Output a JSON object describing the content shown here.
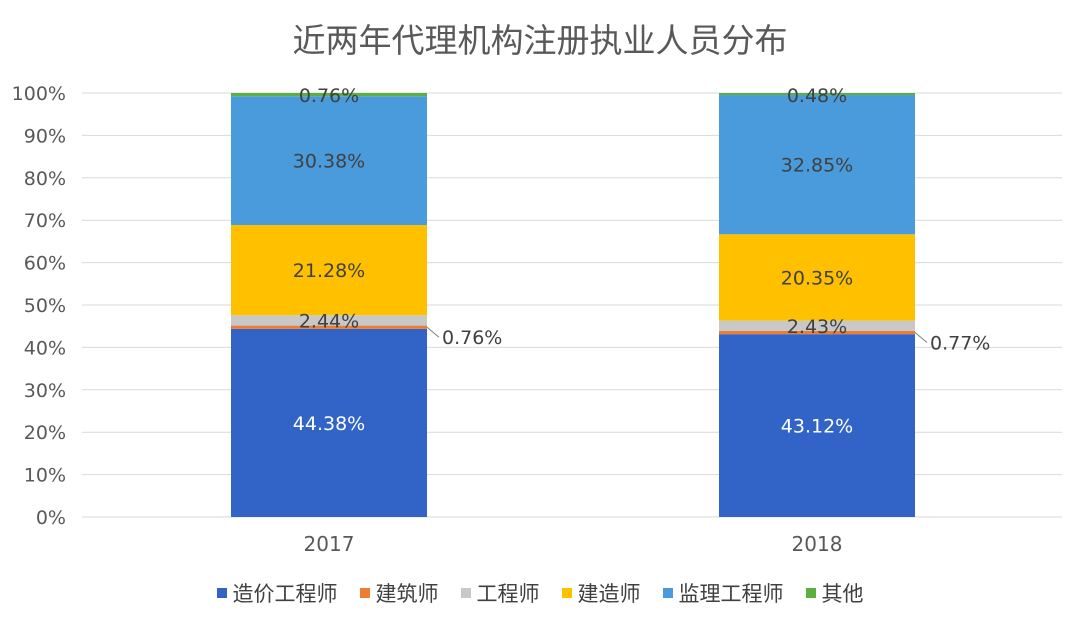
{
  "chart_data": {
    "type": "bar",
    "stacked": true,
    "title": "近两年代理机构注册执业人员分布",
    "categories": [
      "2017",
      "2018"
    ],
    "ylim": [
      0,
      100
    ],
    "yticks": [
      "0%",
      "10%",
      "20%",
      "30%",
      "40%",
      "50%",
      "60%",
      "70%",
      "80%",
      "90%",
      "100%"
    ],
    "grid": true,
    "legend_position": "bottom",
    "series": [
      {
        "name": "造价工程师",
        "color": "#3264C8",
        "values": [
          44.38,
          43.12
        ],
        "labels": [
          "44.38%",
          "43.12%"
        ]
      },
      {
        "name": "建筑师",
        "color": "#ED7D31",
        "values": [
          0.76,
          0.77
        ],
        "labels": [
          "0.76%",
          "0.77%"
        ]
      },
      {
        "name": "工程师",
        "color": "#C8C8C8",
        "values": [
          2.44,
          2.43
        ],
        "labels": [
          "2.44%",
          "2.43%"
        ]
      },
      {
        "name": "建造师",
        "color": "#FFC000",
        "values": [
          21.28,
          20.35
        ],
        "labels": [
          "21.28%",
          "20.35%"
        ]
      },
      {
        "name": "监理工程师",
        "color": "#4A9BDC",
        "values": [
          30.38,
          32.85
        ],
        "labels": [
          "30.38%",
          "32.85%"
        ]
      },
      {
        "name": "其他",
        "color": "#5CB040",
        "values": [
          0.76,
          0.48
        ],
        "labels": [
          "0.76%",
          "0.48%"
        ]
      }
    ]
  }
}
